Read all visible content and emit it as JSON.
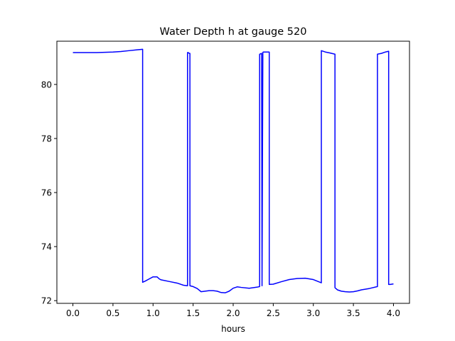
{
  "chart_data": {
    "type": "line",
    "title": "Water Depth h at gauge 520",
    "xlabel": "hours",
    "ylabel": "",
    "xlim": [
      -0.2,
      4.2
    ],
    "ylim": [
      71.9,
      81.6
    ],
    "xticks": [
      0.0,
      0.5,
      1.0,
      1.5,
      2.0,
      2.5,
      3.0,
      3.5,
      4.0
    ],
    "xtick_labels": [
      "0.0",
      "0.5",
      "1.0",
      "1.5",
      "2.0",
      "2.5",
      "3.0",
      "3.5",
      "4.0"
    ],
    "yticks": [
      72,
      74,
      76,
      78,
      80
    ],
    "ytick_labels": [
      "72",
      "74",
      "76",
      "78",
      "80"
    ],
    "grid": false,
    "series": [
      {
        "color": "#0000ff",
        "x": [
          0.0,
          0.3,
          0.5,
          0.6,
          0.7,
          0.8,
          0.87,
          0.87,
          0.9,
          0.95,
          1.0,
          1.05,
          1.08,
          1.1,
          1.2,
          1.3,
          1.38,
          1.43,
          1.43,
          1.44,
          1.45,
          1.46,
          1.46,
          1.5,
          1.55,
          1.6,
          1.7,
          1.75,
          1.8,
          1.85,
          1.9,
          1.95,
          2.0,
          2.05,
          2.1,
          2.2,
          2.3,
          2.33,
          2.33,
          2.355,
          2.36,
          2.37,
          2.375,
          2.39,
          2.45,
          2.45,
          2.5,
          2.6,
          2.7,
          2.8,
          2.9,
          3.0,
          3.1,
          3.1,
          3.15,
          3.2,
          3.27,
          3.27,
          3.3,
          3.35,
          3.4,
          3.45,
          3.5,
          3.55,
          3.6,
          3.7,
          3.8,
          3.8,
          3.85,
          3.9,
          3.94,
          3.94,
          3.96,
          4.0
        ],
        "y": [
          81.18,
          81.18,
          81.2,
          81.22,
          81.25,
          81.28,
          81.3,
          72.68,
          72.72,
          72.8,
          72.88,
          72.88,
          72.8,
          72.77,
          72.71,
          72.65,
          72.57,
          72.55,
          81.18,
          81.18,
          81.15,
          81.15,
          72.55,
          72.52,
          72.45,
          72.33,
          72.37,
          72.37,
          72.35,
          72.3,
          72.29,
          72.35,
          72.46,
          72.51,
          72.49,
          72.46,
          72.5,
          72.52,
          81.12,
          81.15,
          72.55,
          81.18,
          81.2,
          81.2,
          81.2,
          72.6,
          72.61,
          72.7,
          72.78,
          72.82,
          72.83,
          72.78,
          72.66,
          81.25,
          81.2,
          81.17,
          81.12,
          72.48,
          72.4,
          72.35,
          72.33,
          72.32,
          72.33,
          72.36,
          72.4,
          72.45,
          72.52,
          81.12,
          81.15,
          81.2,
          81.23,
          72.6,
          72.6,
          72.62
        ]
      }
    ]
  }
}
